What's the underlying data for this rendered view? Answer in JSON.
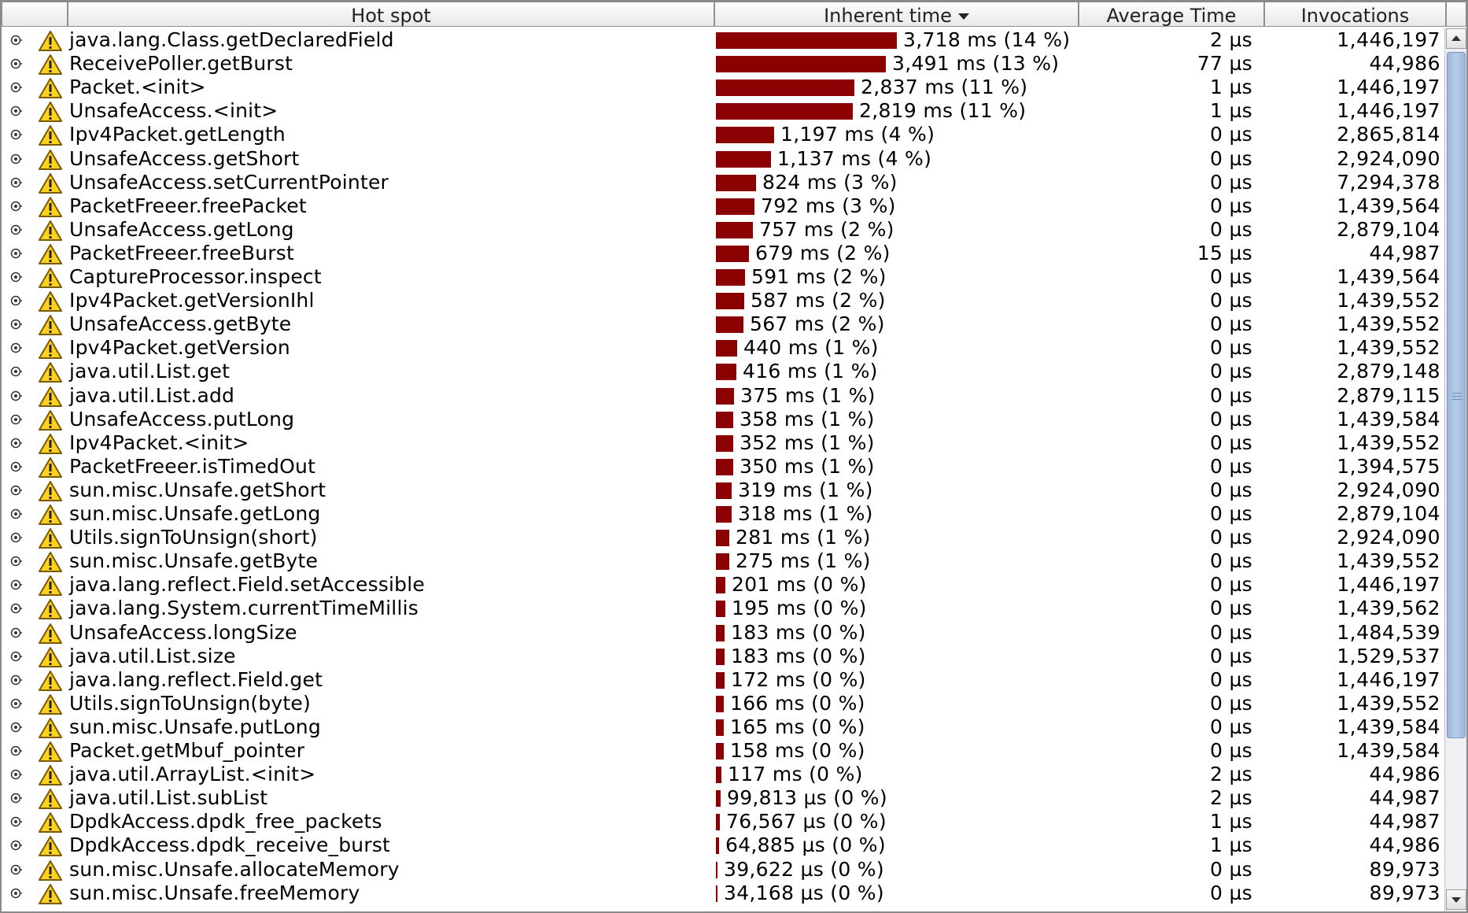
{
  "header": {
    "col_hotspot": "Hot spot",
    "col_inherent": "Inherent time",
    "col_avg": "Average Time",
    "col_invocations": "Invocations"
  },
  "colors": {
    "bar": "#8b0000",
    "warning": "#ffd21f"
  },
  "icons": {
    "expander": "expander-icon",
    "warning": "warning-icon"
  },
  "rows": [
    {
      "name": "java.lang.Class.getDeclaredField",
      "itime": "3,718 ms (14 %)",
      "avg": "2 µs",
      "inv": "1,446,197",
      "ms": 3718
    },
    {
      "name": "ReceivePoller.getBurst",
      "itime": "3,491 ms (13 %)",
      "avg": "77 µs",
      "inv": "44,986",
      "ms": 3491
    },
    {
      "name": "Packet.<init>",
      "itime": "2,837 ms (11 %)",
      "avg": "1 µs",
      "inv": "1,446,197",
      "ms": 2837
    },
    {
      "name": "UnsafeAccess.<init>",
      "itime": "2,819 ms (11 %)",
      "avg": "1 µs",
      "inv": "1,446,197",
      "ms": 2819
    },
    {
      "name": "Ipv4Packet.getLength",
      "itime": "1,197 ms (4 %)",
      "avg": "0 µs",
      "inv": "2,865,814",
      "ms": 1197
    },
    {
      "name": "UnsafeAccess.getShort",
      "itime": "1,137 ms (4 %)",
      "avg": "0 µs",
      "inv": "2,924,090",
      "ms": 1137
    },
    {
      "name": "UnsafeAccess.setCurrentPointer",
      "itime": "824 ms (3 %)",
      "avg": "0 µs",
      "inv": "7,294,378",
      "ms": 824
    },
    {
      "name": "PacketFreeer.freePacket",
      "itime": "792 ms (3 %)",
      "avg": "0 µs",
      "inv": "1,439,564",
      "ms": 792
    },
    {
      "name": "UnsafeAccess.getLong",
      "itime": "757 ms (2 %)",
      "avg": "0 µs",
      "inv": "2,879,104",
      "ms": 757
    },
    {
      "name": "PacketFreeer.freeBurst",
      "itime": "679 ms (2 %)",
      "avg": "15 µs",
      "inv": "44,987",
      "ms": 679
    },
    {
      "name": "CaptureProcessor.inspect",
      "itime": "591 ms (2 %)",
      "avg": "0 µs",
      "inv": "1,439,564",
      "ms": 591
    },
    {
      "name": "Ipv4Packet.getVersionIhl",
      "itime": "587 ms (2 %)",
      "avg": "0 µs",
      "inv": "1,439,552",
      "ms": 587
    },
    {
      "name": "UnsafeAccess.getByte",
      "itime": "567 ms (2 %)",
      "avg": "0 µs",
      "inv": "1,439,552",
      "ms": 567
    },
    {
      "name": "Ipv4Packet.getVersion",
      "itime": "440 ms (1 %)",
      "avg": "0 µs",
      "inv": "1,439,552",
      "ms": 440
    },
    {
      "name": "java.util.List.get",
      "itime": "416 ms (1 %)",
      "avg": "0 µs",
      "inv": "2,879,148",
      "ms": 416
    },
    {
      "name": "java.util.List.add",
      "itime": "375 ms (1 %)",
      "avg": "0 µs",
      "inv": "2,879,115",
      "ms": 375
    },
    {
      "name": "UnsafeAccess.putLong",
      "itime": "358 ms (1 %)",
      "avg": "0 µs",
      "inv": "1,439,584",
      "ms": 358
    },
    {
      "name": "Ipv4Packet.<init>",
      "itime": "352 ms (1 %)",
      "avg": "0 µs",
      "inv": "1,439,552",
      "ms": 352
    },
    {
      "name": "PacketFreeer.isTimedOut",
      "itime": "350 ms (1 %)",
      "avg": "0 µs",
      "inv": "1,394,575",
      "ms": 350
    },
    {
      "name": "sun.misc.Unsafe.getShort",
      "itime": "319 ms (1 %)",
      "avg": "0 µs",
      "inv": "2,924,090",
      "ms": 319
    },
    {
      "name": "sun.misc.Unsafe.getLong",
      "itime": "318 ms (1 %)",
      "avg": "0 µs",
      "inv": "2,879,104",
      "ms": 318
    },
    {
      "name": "Utils.signToUnsign(short)",
      "itime": "281 ms (1 %)",
      "avg": "0 µs",
      "inv": "2,924,090",
      "ms": 281
    },
    {
      "name": "sun.misc.Unsafe.getByte",
      "itime": "275 ms (1 %)",
      "avg": "0 µs",
      "inv": "1,439,552",
      "ms": 275
    },
    {
      "name": "java.lang.reflect.Field.setAccessible",
      "itime": "201 ms (0 %)",
      "avg": "0 µs",
      "inv": "1,446,197",
      "ms": 201
    },
    {
      "name": "java.lang.System.currentTimeMillis",
      "itime": "195 ms (0 %)",
      "avg": "0 µs",
      "inv": "1,439,562",
      "ms": 195
    },
    {
      "name": "UnsafeAccess.longSize",
      "itime": "183 ms (0 %)",
      "avg": "0 µs",
      "inv": "1,484,539",
      "ms": 183
    },
    {
      "name": "java.util.List.size",
      "itime": "183 ms (0 %)",
      "avg": "0 µs",
      "inv": "1,529,537",
      "ms": 183
    },
    {
      "name": "java.lang.reflect.Field.get",
      "itime": "172 ms (0 %)",
      "avg": "0 µs",
      "inv": "1,446,197",
      "ms": 172
    },
    {
      "name": "Utils.signToUnsign(byte)",
      "itime": "166 ms (0 %)",
      "avg": "0 µs",
      "inv": "1,439,552",
      "ms": 166
    },
    {
      "name": "sun.misc.Unsafe.putLong",
      "itime": "165 ms (0 %)",
      "avg": "0 µs",
      "inv": "1,439,584",
      "ms": 165
    },
    {
      "name": "Packet.getMbuf_pointer",
      "itime": "158 ms (0 %)",
      "avg": "0 µs",
      "inv": "1,439,584",
      "ms": 158
    },
    {
      "name": "java.util.ArrayList.<init>",
      "itime": "117 ms (0 %)",
      "avg": "2 µs",
      "inv": "44,986",
      "ms": 117
    },
    {
      "name": "java.util.List.subList",
      "itime": "99,813 µs (0 %)",
      "avg": "2 µs",
      "inv": "44,987",
      "ms": 99.813
    },
    {
      "name": "DpdkAccess.dpdk_free_packets",
      "itime": "76,567 µs (0 %)",
      "avg": "1 µs",
      "inv": "44,987",
      "ms": 76.567
    },
    {
      "name": "DpdkAccess.dpdk_receive_burst",
      "itime": "64,885 µs (0 %)",
      "avg": "1 µs",
      "inv": "44,986",
      "ms": 64.885
    },
    {
      "name": "sun.misc.Unsafe.allocateMemory",
      "itime": "39,622 µs (0 %)",
      "avg": "0 µs",
      "inv": "89,973",
      "ms": 39.622
    },
    {
      "name": "sun.misc.Unsafe.freeMemory",
      "itime": "34,168 µs (0 %)",
      "avg": "0 µs",
      "inv": "89,973",
      "ms": 34.168
    }
  ]
}
